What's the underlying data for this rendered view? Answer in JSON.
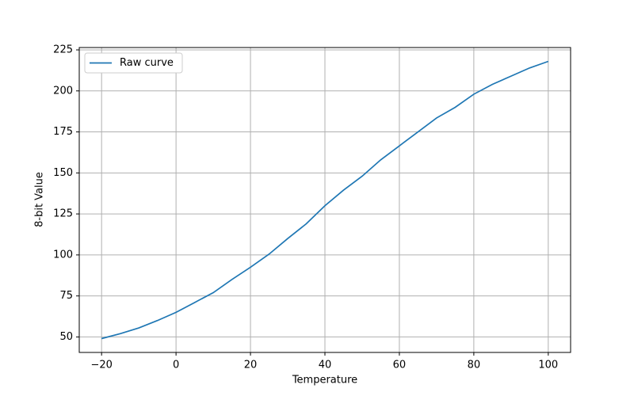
{
  "chart_data": {
    "type": "line",
    "x_label": "Temperature",
    "y_label": "8-bit Value",
    "x": [
      -20,
      -15,
      -10,
      -5,
      0,
      5,
      10,
      15,
      20,
      25,
      30,
      35,
      40,
      45,
      50,
      55,
      60,
      65,
      70,
      75,
      80,
      85,
      90,
      95,
      100
    ],
    "series": [
      {
        "name": "Raw curve",
        "color": "#1f77b4",
        "values": [
          49,
          52,
          55.5,
          60,
          65,
          71,
          77,
          85,
          92.5,
          100.5,
          110,
          119,
          130,
          139.5,
          148,
          158,
          166.5,
          175,
          183.5,
          190,
          198,
          204,
          209,
          214,
          218
        ]
      }
    ],
    "xlim": [
      -26,
      106
    ],
    "ylim": [
      40.55,
      226.45
    ],
    "xticks": [
      {
        "value": -20,
        "label": "−20"
      },
      0,
      20,
      40,
      60,
      80,
      100
    ],
    "yticks": [
      50,
      75,
      100,
      125,
      150,
      175,
      200,
      225
    ],
    "grid": true,
    "legend": "upper left"
  }
}
